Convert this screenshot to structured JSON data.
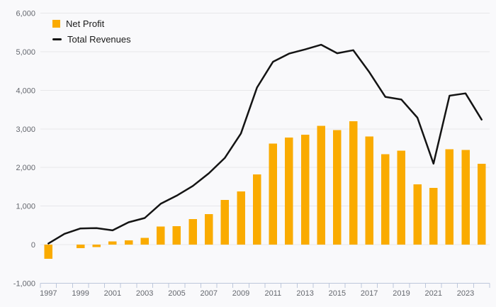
{
  "chart_data": {
    "type": "combo",
    "x": [
      1997,
      1998,
      1999,
      2000,
      2001,
      2002,
      2003,
      2004,
      2005,
      2006,
      2007,
      2008,
      2009,
      2010,
      2011,
      2012,
      2013,
      2014,
      2015,
      2016,
      2017,
      2018,
      2019,
      2020,
      2021,
      2022,
      2023,
      2024
    ],
    "xtick_labels": [
      "1997",
      "1999",
      "2001",
      "2003",
      "2005",
      "2007",
      "2009",
      "2011",
      "2013",
      "2015",
      "2017",
      "2019",
      "2021",
      "2023"
    ],
    "ytick_labels": [
      "-1,000",
      "0",
      "1,000",
      "2,000",
      "3,000",
      "4,000",
      "5,000",
      "6,000"
    ],
    "series": [
      {
        "name": "Net Profit",
        "type": "bar",
        "color": "#FAAB00",
        "values": [
          -370,
          0,
          -90,
          -60,
          80,
          110,
          180,
          470,
          480,
          660,
          790,
          1160,
          1380,
          1820,
          2620,
          2780,
          2850,
          3080,
          2970,
          3200,
          2800,
          2340,
          2440,
          1560,
          1470,
          2470,
          2450,
          2100
        ]
      },
      {
        "name": "Total Revenues",
        "type": "line",
        "color": "#141414",
        "values": [
          30,
          280,
          420,
          430,
          370,
          580,
          690,
          1060,
          1270,
          1520,
          1850,
          2250,
          2880,
          4070,
          4740,
          4950,
          5060,
          5180,
          4960,
          5040,
          4470,
          3830,
          3760,
          3290,
          2100,
          3860,
          3920,
          3240
        ]
      }
    ],
    "ylim": [
      -1000,
      6000
    ],
    "ytick_interval": 1000,
    "grid": "horizontal-only",
    "legend_position": "top-left",
    "background_color": "#F9F9FB",
    "gridline_color": "#E7E7EA",
    "axis_color": "#BDC7DB",
    "tick_label_color": "#64676E"
  }
}
